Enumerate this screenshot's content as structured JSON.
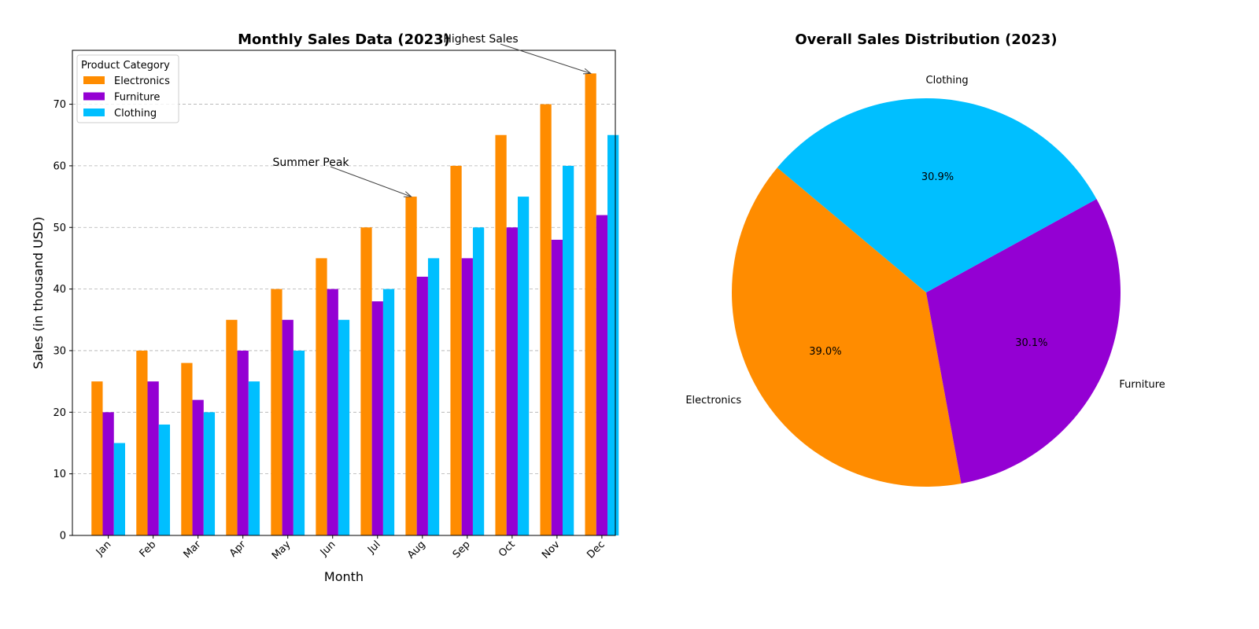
{
  "chart_data": [
    {
      "type": "bar",
      "title": "Monthly Sales Data (2023)",
      "xlabel": "Month",
      "ylabel": "Sales (in thousand USD)",
      "categories": [
        "Jan",
        "Feb",
        "Mar",
        "Apr",
        "May",
        "Jun",
        "Jul",
        "Aug",
        "Sep",
        "Oct",
        "Nov",
        "Dec"
      ],
      "series": [
        {
          "name": "Electronics",
          "color": "#FF8C00",
          "values": [
            25,
            30,
            28,
            35,
            40,
            45,
            50,
            55,
            60,
            65,
            70,
            75
          ]
        },
        {
          "name": "Furniture",
          "color": "#9400D3",
          "values": [
            20,
            25,
            22,
            30,
            35,
            40,
            38,
            42,
            45,
            50,
            48,
            52
          ]
        },
        {
          "name": "Clothing",
          "color": "#00BFFF",
          "values": [
            15,
            18,
            20,
            25,
            30,
            35,
            40,
            45,
            50,
            55,
            60,
            65
          ]
        }
      ],
      "ylim": [
        0,
        78.75
      ],
      "yticks": [
        0,
        10,
        20,
        30,
        40,
        50,
        60,
        70
      ],
      "grid": "y-dashed",
      "legend": {
        "title": "Product Category",
        "placement": "top-left"
      },
      "annotations": [
        {
          "text": "Summer Peak",
          "target": {
            "category": "Aug",
            "series": "Electronics",
            "value": 55
          }
        },
        {
          "text": "Highest Sales",
          "target": {
            "category": "Dec",
            "series": "Electronics",
            "value": 75
          }
        }
      ]
    },
    {
      "type": "pie",
      "title": "Overall Sales Distribution (2023)",
      "slices": [
        {
          "label": "Electronics",
          "percent": 39.0,
          "pct_label": "39.0%",
          "color": "#FF8C00"
        },
        {
          "label": "Furniture",
          "percent": 30.1,
          "pct_label": "30.1%",
          "color": "#9400D3"
        },
        {
          "label": "Clothing",
          "percent": 30.9,
          "pct_label": "30.9%",
          "color": "#00BFFF"
        }
      ],
      "start_angle_deg": 140
    }
  ]
}
